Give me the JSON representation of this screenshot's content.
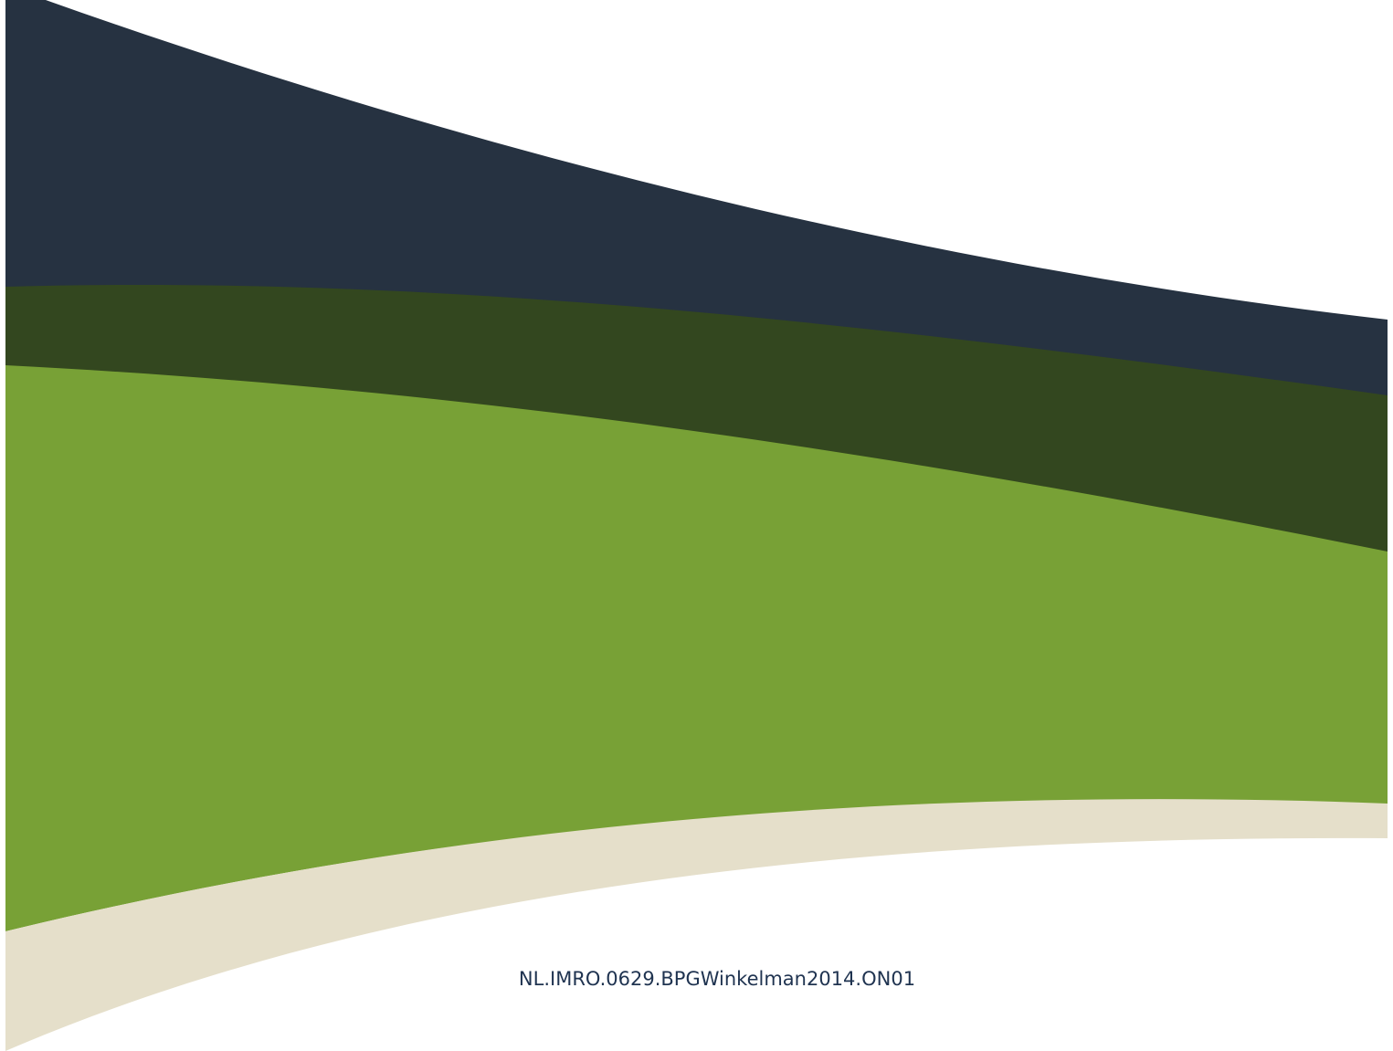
{
  "document": {
    "identifier": "NL.IMRO.0629.BPGWinkelman2014.ON01"
  }
}
